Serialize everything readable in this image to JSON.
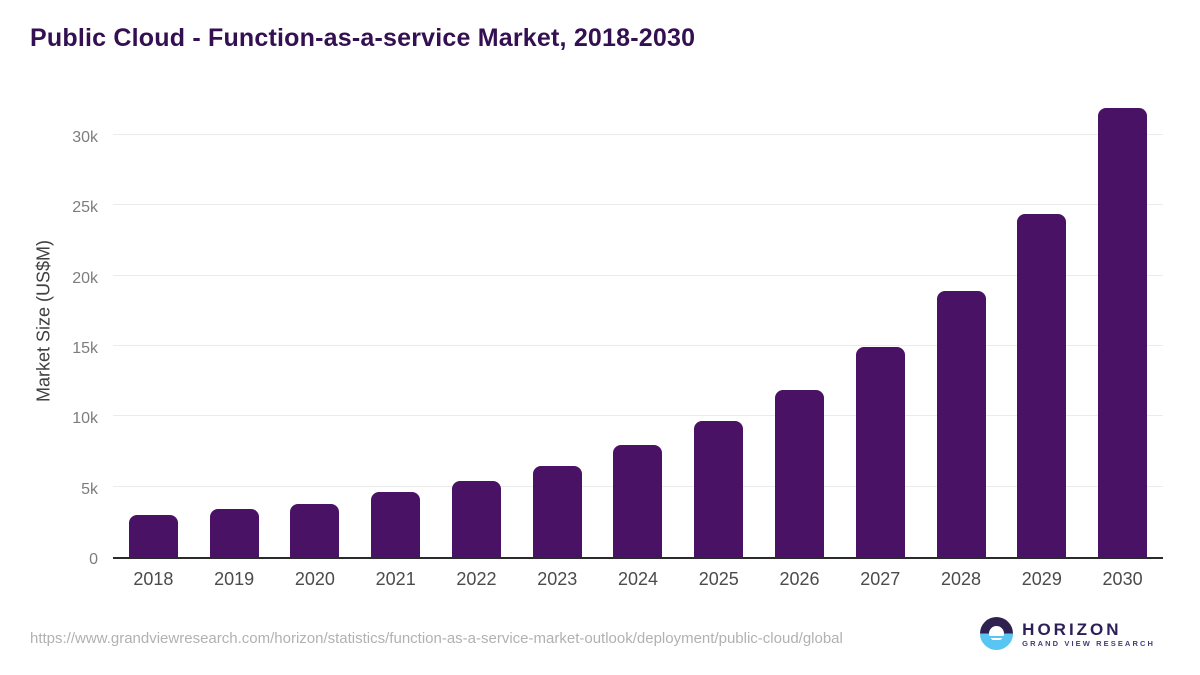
{
  "header": {
    "title": "Public Cloud - Function-as-a-service Market, 2018-2030",
    "title_color": "#340f51"
  },
  "chart_data": {
    "type": "bar",
    "title": "Public Cloud - Function-as-a-service Market, 2018-2030",
    "categories": [
      "2018",
      "2019",
      "2020",
      "2021",
      "2022",
      "2023",
      "2024",
      "2025",
      "2026",
      "2027",
      "2028",
      "2029",
      "2030"
    ],
    "values": [
      3000,
      3400,
      3800,
      4600,
      5400,
      6500,
      8000,
      9700,
      11900,
      14950,
      18900,
      24400,
      31900
    ],
    "xlabel": "",
    "ylabel": "Market Size (US$M)",
    "ylim": [
      0,
      32000
    ],
    "yticks": [
      {
        "value": 0,
        "label": "0"
      },
      {
        "value": 5000,
        "label": "5k"
      },
      {
        "value": 10000,
        "label": "10k"
      },
      {
        "value": 15000,
        "label": "15k"
      },
      {
        "value": 20000,
        "label": "20k"
      },
      {
        "value": 25000,
        "label": "25k"
      },
      {
        "value": 30000,
        "label": "30k"
      }
    ],
    "grid": "horizontal",
    "gridline_color": "#ebebeb",
    "bar_color": "#4a1264",
    "legend": "none"
  },
  "footer": {
    "source_url": "https://www.grandviewresearch.com/horizon/statistics/function-as-a-service-market-outlook/deployment/public-cloud/global",
    "logo": {
      "name": "HORIZON",
      "subtitle": "GRAND VIEW RESEARCH",
      "circle_top_color": "#2e2150",
      "circle_bottom_color": "#58c5f2"
    }
  }
}
